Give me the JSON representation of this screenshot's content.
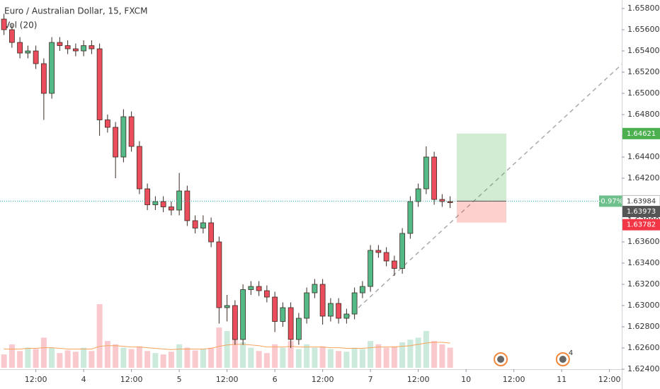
{
  "chart_data": {
    "type": "candlestick",
    "title": "Euro / Australian Dollar, 15, FXCM",
    "volume_label": "Vol (20)",
    "x": [
      1,
      3,
      5,
      7,
      9,
      11,
      13,
      15,
      17,
      19,
      21,
      23,
      25,
      27,
      29,
      31,
      33,
      35,
      37,
      39,
      41,
      43,
      45,
      47,
      49,
      51,
      53,
      55,
      57,
      59,
      61,
      63,
      65,
      67,
      69,
      71,
      73,
      75,
      77,
      79,
      81,
      83,
      85,
      87,
      89,
      91,
      93,
      95,
      97,
      99,
      101,
      103,
      105,
      107,
      109,
      111,
      113
    ],
    "open": [
      1.657,
      1.656,
      1.6548,
      1.6538,
      1.654,
      1.6528,
      1.65,
      1.6548,
      1.6545,
      1.6542,
      1.654,
      1.6545,
      1.6542,
      1.6475,
      1.6468,
      1.644,
      1.6478,
      1.645,
      1.641,
      1.6395,
      1.6398,
      1.6393,
      1.639,
      1.6408,
      1.638,
      1.6373,
      1.6378,
      1.636,
      1.6298,
      1.63,
      1.6268,
      1.6315,
      1.6318,
      1.6314,
      1.6308,
      1.6285,
      1.6298,
      1.6268,
      1.6288,
      1.6312,
      1.632,
      1.629,
      1.6302,
      1.6288,
      1.6292,
      1.6312,
      1.6318,
      1.6352,
      1.635,
      1.6342,
      1.6335,
      1.6368,
      1.6398,
      1.641,
      1.644,
      1.64,
      1.6398
    ],
    "high": [
      1.6575,
      1.6565,
      1.6553,
      1.6545,
      1.6545,
      1.6533,
      1.6553,
      1.6553,
      1.655,
      1.6547,
      1.655,
      1.655,
      1.6547,
      1.648,
      1.6473,
      1.6485,
      1.6483,
      1.6455,
      1.6415,
      1.6403,
      1.6403,
      1.6398,
      1.6425,
      1.6413,
      1.6385,
      1.6385,
      1.6383,
      1.6365,
      1.631,
      1.6305,
      1.632,
      1.6323,
      1.6323,
      1.6319,
      1.6313,
      1.6303,
      1.6303,
      1.6293,
      1.6317,
      1.6325,
      1.6325,
      1.6307,
      1.6307,
      1.6297,
      1.6317,
      1.6323,
      1.6357,
      1.6357,
      1.6355,
      1.6347,
      1.6373,
      1.6403,
      1.6415,
      1.645,
      1.6445,
      1.6405,
      1.6403
    ],
    "low": [
      1.6555,
      1.6543,
      1.6533,
      1.6533,
      1.6523,
      1.6475,
      1.6495,
      1.654,
      1.6537,
      1.6535,
      1.6535,
      1.6537,
      1.646,
      1.6463,
      1.642,
      1.6435,
      1.6445,
      1.6405,
      1.639,
      1.639,
      1.6388,
      1.6385,
      1.6385,
      1.6375,
      1.6368,
      1.6368,
      1.6355,
      1.6283,
      1.6285,
      1.6263,
      1.6263,
      1.631,
      1.6309,
      1.6303,
      1.6275,
      1.628,
      1.626,
      1.6263,
      1.6283,
      1.6307,
      1.6282,
      1.6285,
      1.6283,
      1.6283,
      1.6287,
      1.6307,
      1.6313,
      1.6345,
      1.6337,
      1.6328,
      1.633,
      1.6363,
      1.6393,
      1.6405,
      1.6395,
      1.6393,
      1.6392
    ],
    "close": [
      1.656,
      1.6548,
      1.6538,
      1.654,
      1.6528,
      1.65,
      1.6548,
      1.6545,
      1.6542,
      1.654,
      1.6545,
      1.6542,
      1.6475,
      1.6468,
      1.644,
      1.6478,
      1.645,
      1.641,
      1.6395,
      1.6398,
      1.6393,
      1.639,
      1.6408,
      1.638,
      1.6373,
      1.6378,
      1.636,
      1.6298,
      1.63,
      1.6268,
      1.6315,
      1.6318,
      1.6314,
      1.6308,
      1.6285,
      1.6298,
      1.6268,
      1.6288,
      1.6312,
      1.632,
      1.629,
      1.6302,
      1.6288,
      1.6292,
      1.6312,
      1.6318,
      1.6352,
      1.635,
      1.6342,
      1.6335,
      1.6368,
      1.6398,
      1.641,
      1.644,
      1.64,
      1.6398,
      1.6397
    ],
    "volume": [
      20,
      35,
      25,
      30,
      28,
      45,
      30,
      22,
      26,
      24,
      30,
      25,
      95,
      40,
      35,
      30,
      28,
      32,
      25,
      22,
      20,
      24,
      35,
      30,
      26,
      28,
      30,
      60,
      55,
      45,
      38,
      30,
      25,
      22,
      35,
      30,
      40,
      28,
      35,
      30,
      32,
      28,
      25,
      24,
      30,
      28,
      40,
      35,
      30,
      32,
      38,
      42,
      45,
      55,
      40,
      35,
      30
    ],
    "volume_ma": [
      28,
      28,
      28,
      29,
      29,
      30,
      30,
      29,
      28,
      28,
      28,
      28,
      32,
      33,
      33,
      32,
      31,
      31,
      30,
      29,
      28,
      27,
      28,
      28,
      28,
      28,
      29,
      32,
      34,
      35,
      35,
      34,
      33,
      31,
      31,
      31,
      32,
      31,
      31,
      31,
      31,
      30,
      30,
      29,
      29,
      29,
      30,
      31,
      31,
      31,
      32,
      33,
      35,
      37,
      38,
      38,
      37
    ],
    "up_color": "#53b987",
    "down_color": "#eb4d5c",
    "volume_ma_color": "#f7a35c",
    "xlim": [
      0,
      156
    ],
    "xticks": [
      {
        "value": 9,
        "label": "12:00"
      },
      {
        "value": 21,
        "label": "4"
      },
      {
        "value": 33,
        "label": "12:00"
      },
      {
        "value": 45,
        "label": "5"
      },
      {
        "value": 57,
        "label": "12:00"
      },
      {
        "value": 69,
        "label": "6"
      },
      {
        "value": 81,
        "label": "12:00"
      },
      {
        "value": 93,
        "label": "7"
      },
      {
        "value": 105,
        "label": "12:00"
      },
      {
        "value": 117,
        "label": "10"
      },
      {
        "value": 129,
        "label": "12:00"
      },
      {
        "value": 141,
        "label": "11"
      },
      {
        "value": 153,
        "label": "12:00"
      }
    ],
    "ylim": [
      1.624,
      1.6588
    ],
    "yticks": [
      {
        "value": 1.658,
        "label": "1.65800"
      },
      {
        "value": 1.656,
        "label": "1.65600"
      },
      {
        "value": 1.654,
        "label": "1.65400"
      },
      {
        "value": 1.652,
        "label": "1.65200"
      },
      {
        "value": 1.65,
        "label": "1.65000"
      },
      {
        "value": 1.648,
        "label": "1.64800"
      },
      {
        "value": 1.646,
        "label": "1.64600"
      },
      {
        "value": 1.644,
        "label": "1.64400"
      },
      {
        "value": 1.642,
        "label": "1.64200"
      },
      {
        "value": 1.64,
        "label": "1.64000"
      },
      {
        "value": 1.638,
        "label": "1.63800"
      },
      {
        "value": 1.636,
        "label": "1.63600"
      },
      {
        "value": 1.634,
        "label": "1.63400"
      },
      {
        "value": 1.632,
        "label": "1.63200"
      },
      {
        "value": 1.63,
        "label": "1.63000"
      },
      {
        "value": 1.628,
        "label": "1.62800"
      },
      {
        "value": 1.626,
        "label": "1.62600"
      },
      {
        "value": 1.624,
        "label": "1.62400"
      }
    ],
    "grid": false,
    "position": {
      "target": 1.64621,
      "entry": 1.63984,
      "stop": 1.63782,
      "change": {
        "value": -0.97,
        "label": "-0.97%"
      }
    },
    "last_price": 1.63973,
    "events": [
      {
        "x": 125.7
      },
      {
        "x": 141.3,
        "count": 4
      }
    ]
  }
}
